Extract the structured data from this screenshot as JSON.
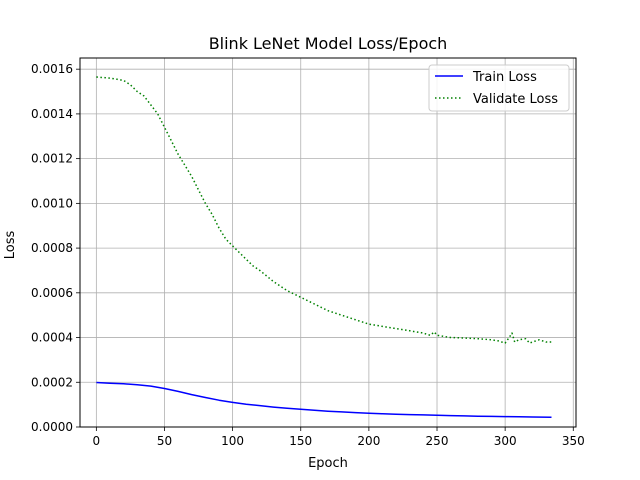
{
  "chart_data": {
    "type": "line",
    "title": "Blink LeNet Model Loss/Epoch",
    "xlabel": "Epoch",
    "ylabel": "Loss",
    "xlim": [
      -12,
      352
    ],
    "ylim": [
      0,
      0.00165
    ],
    "xticks": [
      0,
      50,
      100,
      150,
      200,
      250,
      300,
      350
    ],
    "yticks": [
      0.0,
      0.0002,
      0.0004,
      0.0006,
      0.0008,
      0.001,
      0.0012,
      0.0014,
      0.0016
    ],
    "xtick_labels": [
      "0",
      "50",
      "100",
      "150",
      "200",
      "250",
      "300",
      "350"
    ],
    "ytick_labels": [
      "0.0000",
      "0.0002",
      "0.0004",
      "0.0006",
      "0.0008",
      "0.0010",
      "0.0012",
      "0.0014",
      "0.0016"
    ],
    "grid": true,
    "legend_position": "top-right",
    "series": [
      {
        "name": "Train Loss",
        "color": "#0000ff",
        "linestyle": "solid",
        "x": [
          0,
          10,
          20,
          30,
          40,
          50,
          60,
          70,
          80,
          90,
          100,
          110,
          120,
          130,
          140,
          150,
          160,
          170,
          180,
          190,
          200,
          210,
          220,
          230,
          240,
          250,
          260,
          270,
          280,
          290,
          300,
          310,
          320,
          334
        ],
        "y": [
          0.000199,
          0.000196,
          0.000193,
          0.000189,
          0.000183,
          0.000172,
          0.000159,
          0.000145,
          0.000132,
          0.00012,
          0.00011,
          0.000102,
          9.55e-05,
          8.9e-05,
          8.35e-05,
          7.9e-05,
          7.45e-05,
          7.05e-05,
          6.75e-05,
          6.45e-05,
          6.15e-05,
          5.9e-05,
          5.7e-05,
          5.55e-05,
          5.4e-05,
          5.25e-05,
          5.1e-05,
          4.95e-05,
          4.85e-05,
          4.75e-05,
          4.65e-05,
          4.55e-05,
          4.45e-05,
          4.35e-05
        ]
      },
      {
        "name": "Validate Loss",
        "color": "#008000",
        "linestyle": "dotted",
        "x": [
          0,
          10,
          20,
          25,
          30,
          35,
          40,
          45,
          50,
          55,
          60,
          65,
          70,
          75,
          80,
          85,
          90,
          95,
          100,
          105,
          110,
          115,
          120,
          130,
          140,
          150,
          160,
          170,
          180,
          190,
          200,
          210,
          215,
          220,
          230,
          240,
          245,
          248,
          250,
          255,
          260,
          270,
          280,
          290,
          295,
          300,
          303,
          305,
          307,
          310,
          315,
          318,
          320,
          325,
          330,
          334
        ],
        "y": [
          0.001565,
          0.00156,
          0.00155,
          0.00153,
          0.0015,
          0.00148,
          0.00144,
          0.0014,
          0.00134,
          0.00128,
          0.00122,
          0.00117,
          0.00112,
          0.00106,
          0.001,
          0.00095,
          0.00089,
          0.00084,
          0.00081,
          0.00078,
          0.00075,
          0.00072,
          0.0007,
          0.00065,
          0.00061,
          0.00058,
          0.00055,
          0.00052,
          0.0005,
          0.00048,
          0.00046,
          0.00045,
          0.000445,
          0.00044,
          0.00043,
          0.00042,
          0.00041,
          0.000425,
          0.00041,
          0.000405,
          0.0004,
          0.000398,
          0.000395,
          0.00039,
          0.000385,
          0.000375,
          0.0004,
          0.00042,
          0.00038,
          0.00039,
          0.000395,
          0.000375,
          0.00038,
          0.00039,
          0.00038,
          0.00038
        ]
      }
    ]
  }
}
